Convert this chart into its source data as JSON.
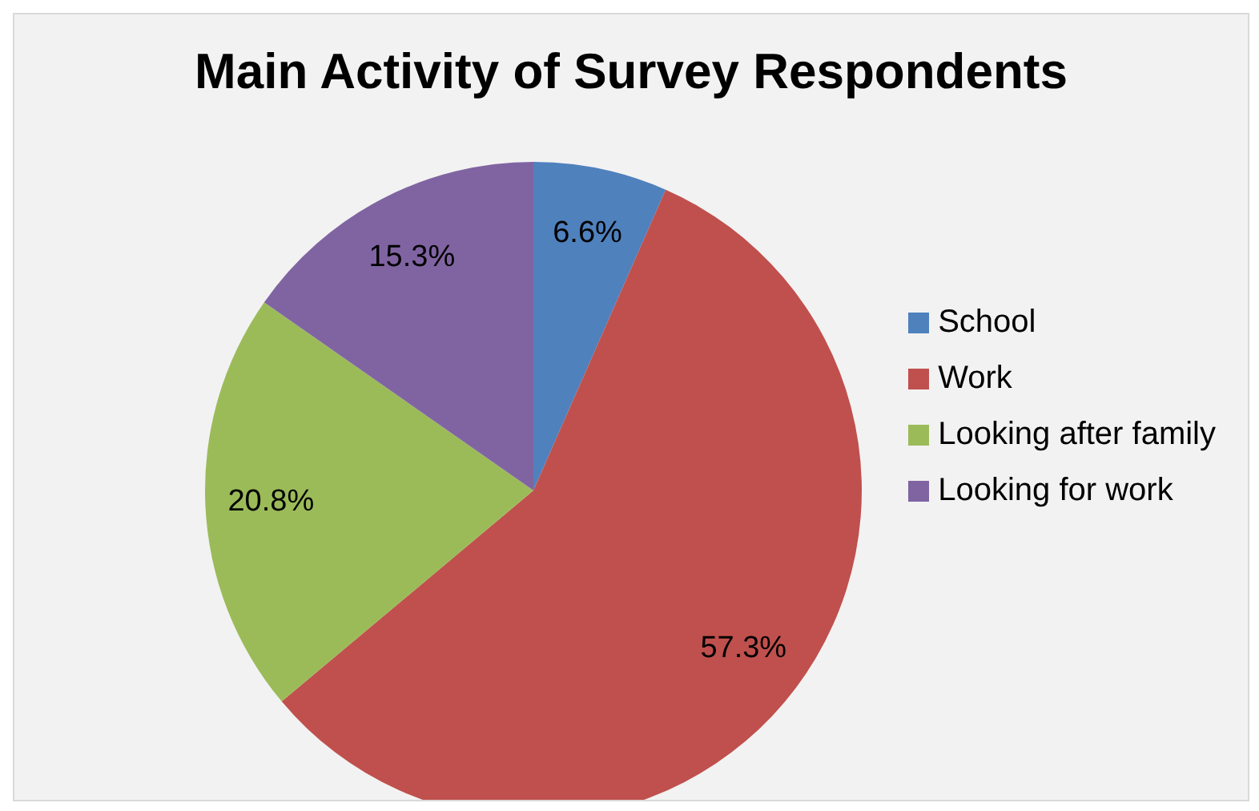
{
  "chart_data": {
    "type": "pie",
    "title": "Main Activity of Survey Respondents",
    "categories": [
      "School",
      "Work",
      "Looking after family",
      "Looking for work"
    ],
    "values": [
      6.6,
      57.3,
      20.8,
      15.3
    ],
    "colors": [
      "#4f81bd",
      "#c0504d",
      "#9bbb59",
      "#8064a2"
    ],
    "value_labels": [
      "6.6%",
      "57.3%",
      "20.8%",
      "15.3%"
    ],
    "legend": "right"
  }
}
